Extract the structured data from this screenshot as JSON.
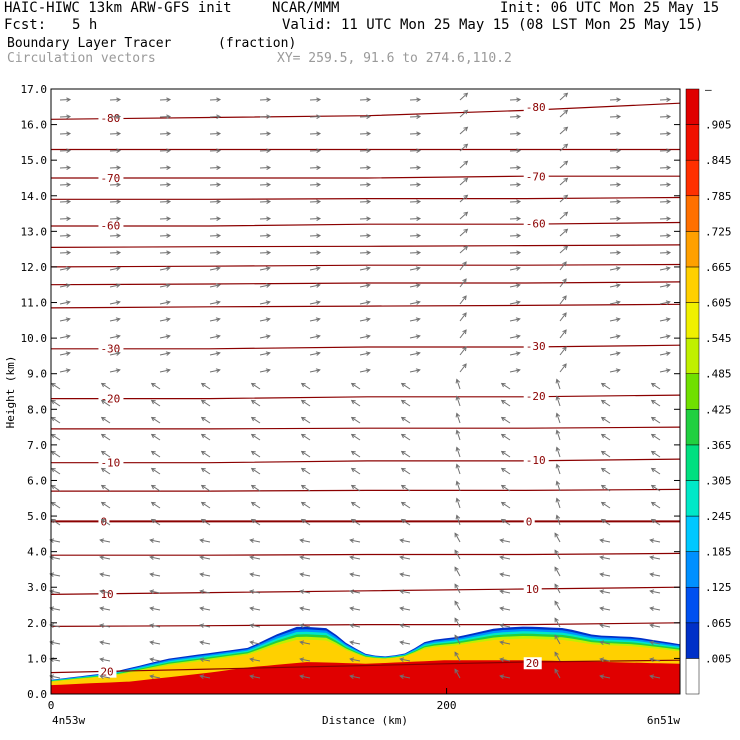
{
  "header": {
    "model": "HAIC-HIWC 13km ARW-GFS init",
    "org": "NCAR/MMM",
    "init": "Init: 06 UTC Mon 25 May 15",
    "fcst_label": "Fcst:",
    "fcst_value": "5 h",
    "valid": "Valid: 11 UTC Mon 25 May 15 (08 LST Mon 25 May 15)",
    "field": "Boundary Layer Tracer",
    "field_unit": "(fraction)",
    "overlay": "Circulation vectors",
    "xy": "XY= 259.5, 91.6 to 274.6,110.2"
  },
  "chart_data": {
    "type": "heatmap",
    "ylabel": "Height (km)",
    "xlabel": "Distance (km)",
    "y_ticks": [
      "0.0",
      "1.0",
      "2.0",
      "3.0",
      "4.0",
      "5.0",
      "6.0",
      "7.0",
      "8.0",
      "9.0",
      "10.0",
      "11.0",
      "12.0",
      "13.0",
      "14.0",
      "15.0",
      "16.0",
      "17.0"
    ],
    "ylim": [
      0,
      17
    ],
    "x_ticks": [
      "0",
      "200"
    ],
    "xlim": [
      0,
      318
    ],
    "x_endpoints": {
      "left": "4n53w",
      "right": "6n51w"
    },
    "colorbar_labels": [
      ".005",
      ".065",
      ".125",
      ".185",
      ".245",
      ".305",
      ".365",
      ".425",
      ".485",
      ".545",
      ".605",
      ".665",
      ".725",
      ".785",
      ".845",
      ".905",
      "–"
    ],
    "colorbar_colors": [
      "#ffffff",
      "#0030c8",
      "#0050f0",
      "#0090ff",
      "#00c8ff",
      "#00e8c8",
      "#00e080",
      "#20d040",
      "#70e000",
      "#c0f000",
      "#f0f000",
      "#ffd000",
      "#ffa000",
      "#ff7000",
      "#ff3000",
      "#f01000",
      "#e00000"
    ],
    "tracer_top_km": [
      [
        0,
        0.4
      ],
      [
        30,
        0.6
      ],
      [
        60,
        1.0
      ],
      [
        100,
        1.3
      ],
      [
        115,
        1.7
      ],
      [
        125,
        1.9
      ],
      [
        140,
        1.85
      ],
      [
        150,
        1.4
      ],
      [
        160,
        1.1
      ],
      [
        170,
        1.05
      ],
      [
        180,
        1.15
      ],
      [
        190,
        1.5
      ],
      [
        205,
        1.6
      ],
      [
        225,
        1.85
      ],
      [
        240,
        1.9
      ],
      [
        260,
        1.85
      ],
      [
        275,
        1.65
      ],
      [
        295,
        1.6
      ],
      [
        318,
        1.4
      ]
    ],
    "tracer_high_top_km": [
      [
        0,
        0.25
      ],
      [
        40,
        0.35
      ],
      [
        80,
        0.6
      ],
      [
        100,
        0.75
      ],
      [
        130,
        0.9
      ],
      [
        160,
        0.85
      ],
      [
        200,
        0.95
      ],
      [
        240,
        0.95
      ],
      [
        280,
        0.9
      ],
      [
        318,
        0.85
      ]
    ],
    "isotherms": [
      {
        "label": "20",
        "y": [
          0.6,
          0.7,
          0.8,
          0.9,
          0.95
        ]
      },
      {
        "label": "10",
        "y": [
          2.8,
          2.85,
          2.9,
          2.95,
          3.0
        ]
      },
      {
        "label": "0",
        "y": [
          4.85,
          4.85,
          4.85,
          4.85,
          4.85
        ]
      },
      {
        "label": "-10",
        "y": [
          6.5,
          6.5,
          6.55,
          6.55,
          6.6
        ]
      },
      {
        "label": "-20",
        "y": [
          8.3,
          8.3,
          8.35,
          8.35,
          8.4
        ]
      },
      {
        "label": "-30",
        "y": [
          9.7,
          9.7,
          9.75,
          9.75,
          9.8
        ]
      },
      {
        "label": "",
        "y": [
          3.9,
          3.9,
          3.92,
          3.92,
          3.95
        ]
      },
      {
        "label": "",
        "y": [
          5.7,
          5.7,
          5.72,
          5.72,
          5.75
        ]
      },
      {
        "label": "",
        "y": [
          7.45,
          7.45,
          7.47,
          7.47,
          7.5
        ]
      },
      {
        "label": "",
        "y": [
          10.85,
          10.88,
          10.9,
          10.92,
          10.95
        ]
      },
      {
        "label": "",
        "y": [
          11.5,
          11.52,
          11.55,
          11.55,
          11.58
        ]
      },
      {
        "label": "",
        "y": [
          12.0,
          12.02,
          12.05,
          12.05,
          12.07
        ]
      },
      {
        "label": "",
        "y": [
          12.55,
          12.57,
          12.58,
          12.6,
          12.62
        ]
      },
      {
        "label": "-60",
        "y": [
          13.15,
          13.15,
          13.2,
          13.2,
          13.25
        ]
      },
      {
        "label": "",
        "y": [
          13.9,
          13.9,
          13.92,
          13.92,
          13.95
        ]
      },
      {
        "label": "-70",
        "y": [
          14.5,
          14.5,
          14.5,
          14.55,
          14.55
        ]
      },
      {
        "label": "",
        "y": [
          15.3,
          15.3,
          15.3,
          15.3,
          15.3
        ]
      },
      {
        "label": "-80",
        "y": [
          16.15,
          16.2,
          16.25,
          16.4,
          16.6
        ]
      },
      {
        "label": "",
        "y": [
          1.9,
          1.92,
          1.95,
          1.95,
          2.0
        ]
      }
    ],
    "isotherm_x": [
      0,
      80,
      160,
      240,
      318
    ]
  }
}
